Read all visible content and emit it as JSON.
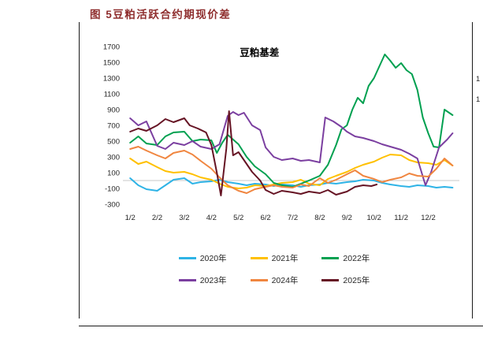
{
  "accent_color": "#8F2E2E",
  "header": {
    "title": "图 5豆粕活跃合约期现价差"
  },
  "side_panel": {
    "partial_labels": [
      "1",
      "1"
    ]
  },
  "chart_data": {
    "type": "line",
    "title": "豆粕基差",
    "xlabel": "",
    "ylabel": "",
    "x_tick_labels": [
      "1/2",
      "2/2",
      "3/2",
      "4/2",
      "5/2",
      "6/2",
      "7/2",
      "8/2",
      "9/2",
      "10/2",
      "11/2",
      "12/2"
    ],
    "x_tick_positions": [
      1,
      2,
      3,
      4,
      5,
      6,
      7,
      8,
      9,
      10,
      11,
      12
    ],
    "xlim": [
      0.85,
      13.15
    ],
    "y_ticks": [
      -300,
      -100,
      100,
      300,
      500,
      700,
      900,
      1100,
      1300,
      1500,
      1700
    ],
    "ylim": [
      -300,
      1700
    ],
    "grid": "zero-line-only",
    "zero_line_color": "#c9c9c9",
    "legend_position": "bottom",
    "legend_rows": [
      [
        "2020年",
        "2021年",
        "2022年"
      ],
      [
        "2023年",
        "2024年",
        "2025年"
      ]
    ],
    "series": [
      {
        "name": "2020年",
        "color": "#2EB3E6",
        "x": [
          1.0,
          1.3,
          1.6,
          2.0,
          2.3,
          2.6,
          3.0,
          3.3,
          3.6,
          4.0,
          4.3,
          4.6,
          5.0,
          5.3,
          5.6,
          6.0,
          6.3,
          6.6,
          7.0,
          7.3,
          7.6,
          8.0,
          8.3,
          8.6,
          9.0,
          9.3,
          9.6,
          10.0,
          10.3,
          10.6,
          11.0,
          11.3,
          11.6,
          12.0,
          12.3,
          12.6,
          12.9
        ],
        "values": [
          30,
          -60,
          -110,
          -130,
          -60,
          10,
          30,
          -40,
          -20,
          -10,
          10,
          -20,
          -40,
          -60,
          -40,
          -50,
          -70,
          -50,
          -60,
          -80,
          -60,
          -50,
          -30,
          -40,
          -20,
          -10,
          10,
          0,
          -30,
          -50,
          -70,
          -80,
          -60,
          -70,
          -90,
          -80,
          -90
        ]
      },
      {
        "name": "2021年",
        "color": "#FFC000",
        "x": [
          1.0,
          1.3,
          1.6,
          2.0,
          2.3,
          2.6,
          3.0,
          3.3,
          3.6,
          4.0,
          4.3,
          4.6,
          5.0,
          5.3,
          5.6,
          6.0,
          6.3,
          6.6,
          7.0,
          7.3,
          7.6,
          8.0,
          8.3,
          8.6,
          9.0,
          9.3,
          9.6,
          10.0,
          10.3,
          10.6,
          11.0,
          11.3,
          11.6,
          12.0,
          12.3,
          12.6,
          12.9
        ],
        "values": [
          280,
          210,
          240,
          170,
          120,
          100,
          110,
          80,
          40,
          10,
          -40,
          -80,
          -100,
          -90,
          -60,
          -70,
          -50,
          -30,
          -20,
          10,
          -40,
          -60,
          20,
          60,
          110,
          160,
          200,
          240,
          290,
          330,
          320,
          260,
          230,
          220,
          200,
          260,
          190
        ]
      },
      {
        "name": "2022年",
        "color": "#00A050",
        "x": [
          1.0,
          1.3,
          1.6,
          2.0,
          2.3,
          2.6,
          3.0,
          3.3,
          3.6,
          4.0,
          4.2,
          4.4,
          4.6,
          5.0,
          5.3,
          5.6,
          6.0,
          6.3,
          6.6,
          7.0,
          7.3,
          7.6,
          8.0,
          8.3,
          8.6,
          8.8,
          9.0,
          9.2,
          9.4,
          9.6,
          9.8,
          10.0,
          10.2,
          10.4,
          10.6,
          10.8,
          11.0,
          11.2,
          11.4,
          11.6,
          11.8,
          12.0,
          12.2,
          12.4,
          12.6,
          12.9
        ],
        "values": [
          480,
          560,
          470,
          450,
          560,
          610,
          620,
          500,
          520,
          510,
          350,
          480,
          580,
          460,
          300,
          180,
          80,
          -30,
          -60,
          -80,
          -40,
          0,
          60,
          200,
          450,
          650,
          700,
          900,
          1050,
          980,
          1200,
          1300,
          1450,
          1600,
          1520,
          1430,
          1490,
          1400,
          1350,
          1150,
          800,
          600,
          430,
          420,
          900,
          830
        ]
      },
      {
        "name": "2023年",
        "color": "#7B3FA0",
        "x": [
          1.0,
          1.3,
          1.6,
          2.0,
          2.3,
          2.6,
          3.0,
          3.3,
          3.6,
          4.0,
          4.3,
          4.6,
          4.8,
          5.0,
          5.2,
          5.5,
          5.8,
          6.0,
          6.3,
          6.6,
          7.0,
          7.3,
          7.6,
          8.0,
          8.2,
          8.5,
          8.8,
          9.0,
          9.3,
          9.6,
          10.0,
          10.3,
          10.6,
          11.0,
          11.3,
          11.6,
          11.9,
          12.1,
          12.4,
          12.7,
          12.9
        ],
        "values": [
          790,
          700,
          750,
          440,
          400,
          480,
          450,
          500,
          430,
          400,
          460,
          820,
          870,
          830,
          860,
          700,
          640,
          420,
          300,
          260,
          280,
          250,
          260,
          230,
          800,
          750,
          680,
          620,
          560,
          540,
          500,
          460,
          430,
          390,
          340,
          280,
          -60,
          100,
          420,
          520,
          600
        ]
      },
      {
        "name": "2024年",
        "color": "#F08640",
        "x": [
          1.0,
          1.3,
          1.6,
          2.0,
          2.3,
          2.6,
          3.0,
          3.3,
          3.6,
          4.0,
          4.3,
          4.6,
          5.0,
          5.3,
          5.6,
          6.0,
          6.3,
          6.6,
          7.0,
          7.3,
          7.6,
          8.0,
          8.3,
          8.6,
          9.0,
          9.3,
          9.6,
          10.0,
          10.3,
          10.6,
          11.0,
          11.3,
          11.6,
          12.0,
          12.3,
          12.6,
          12.9
        ],
        "values": [
          400,
          430,
          380,
          320,
          280,
          350,
          380,
          330,
          250,
          150,
          40,
          -60,
          -130,
          -160,
          -110,
          -80,
          -60,
          -80,
          -90,
          -50,
          -70,
          30,
          -30,
          10,
          80,
          130,
          60,
          20,
          -20,
          10,
          40,
          90,
          60,
          50,
          150,
          280,
          190
        ]
      },
      {
        "name": "2025年",
        "color": "#661424",
        "x": [
          1.0,
          1.3,
          1.6,
          2.0,
          2.3,
          2.6,
          3.0,
          3.2,
          3.5,
          3.8,
          4.0,
          4.2,
          4.35,
          4.55,
          4.65,
          4.8,
          5.0,
          5.2,
          5.5,
          5.8,
          6.0,
          6.3,
          6.6,
          7.0,
          7.3,
          7.6,
          8.0,
          8.3,
          8.6,
          9.0,
          9.3,
          9.6,
          9.9,
          10.1
        ],
        "values": [
          620,
          660,
          630,
          700,
          780,
          740,
          790,
          700,
          660,
          610,
          450,
          100,
          -190,
          400,
          880,
          320,
          360,
          260,
          110,
          0,
          -120,
          -170,
          -130,
          -150,
          -170,
          -140,
          -160,
          -120,
          -180,
          -140,
          -80,
          -60,
          -70,
          -50
        ]
      }
    ]
  }
}
